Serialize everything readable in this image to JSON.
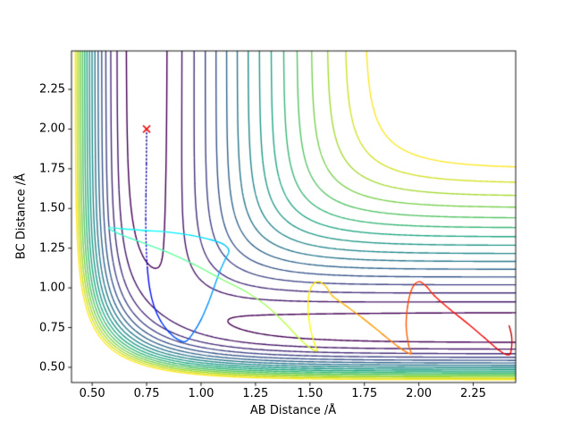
{
  "figure": {
    "background": "#ffffff",
    "axes_edge_color": "#000000"
  },
  "chart_data": {
    "type": "contour",
    "xlabel": "AB Distance /Å",
    "ylabel": "BC Distance /Å",
    "xlim": [
      0.405,
      2.445
    ],
    "ylim": [
      0.404,
      2.492
    ],
    "x_ticks": [
      0.5,
      0.75,
      1.0,
      1.25,
      1.5,
      1.75,
      2.0,
      2.25
    ],
    "x_tick_labels": [
      "0.50",
      "0.75",
      "1.00",
      "1.25",
      "1.50",
      "1.75",
      "2.00",
      "2.25"
    ],
    "y_ticks": [
      0.5,
      0.75,
      1.0,
      1.25,
      1.5,
      1.75,
      2.0,
      2.25
    ],
    "y_tick_labels": [
      "0.50",
      "0.75",
      "1.00",
      "1.25",
      "1.50",
      "1.75",
      "2.00",
      "2.25"
    ],
    "grid": false,
    "contour": {
      "model": "LEPS",
      "D": 4.7466,
      "beta": 1.942,
      "r0": 0.7417,
      "sato": 0.1827,
      "levels": [
        -4.59,
        -4.3665,
        -4.143,
        -3.9195,
        -3.696,
        -3.4725,
        -3.249,
        -3.0255,
        -2.802,
        -2.5785,
        -2.355,
        -2.1315,
        -1.908,
        -1.6845,
        -1.461,
        -1.2375
      ],
      "colormap": "viridis",
      "line_width": 1.4
    },
    "viridis_stops": [
      [
        0.0,
        "#440154"
      ],
      [
        0.1,
        "#482475"
      ],
      [
        0.2,
        "#414487"
      ],
      [
        0.3,
        "#355f8d"
      ],
      [
        0.4,
        "#2a788e"
      ],
      [
        0.5,
        "#21918c"
      ],
      [
        0.6,
        "#22a884"
      ],
      [
        0.7,
        "#44bf70"
      ],
      [
        0.8,
        "#7ad151"
      ],
      [
        0.9,
        "#bddf26"
      ],
      [
        1.0,
        "#fde725"
      ]
    ],
    "start_marker": {
      "x": 0.75,
      "y": 2.0,
      "symbol": "x",
      "color": "#f01515",
      "size": 8
    },
    "trajectory": {
      "colormap": "jet",
      "line_width": 1.35,
      "dotted_until_t": 0.105,
      "points": [
        [
          0.75,
          2.0,
          0.0
        ],
        [
          0.749,
          1.78,
          0.02
        ],
        [
          0.747,
          1.58,
          0.04
        ],
        [
          0.746,
          1.43,
          0.06
        ],
        [
          0.748,
          1.27,
          0.08
        ],
        [
          0.753,
          1.13,
          0.1
        ],
        [
          0.765,
          0.99,
          0.125
        ],
        [
          0.785,
          0.88,
          0.15
        ],
        [
          0.815,
          0.79,
          0.17
        ],
        [
          0.852,
          0.722,
          0.19
        ],
        [
          0.89,
          0.678,
          0.207
        ],
        [
          0.928,
          0.662,
          0.22
        ],
        [
          0.965,
          0.718,
          0.237
        ],
        [
          1.0,
          0.8,
          0.252
        ],
        [
          1.032,
          0.9,
          0.267
        ],
        [
          1.06,
          1.005,
          0.28
        ],
        [
          1.088,
          1.11,
          0.292
        ],
        [
          1.113,
          1.185,
          0.302
        ],
        [
          1.128,
          1.235,
          0.312
        ],
        [
          1.098,
          1.278,
          0.325
        ],
        [
          1.04,
          1.305,
          0.338
        ],
        [
          0.95,
          1.332,
          0.352
        ],
        [
          0.845,
          1.352,
          0.366
        ],
        [
          0.73,
          1.362,
          0.38
        ],
        [
          0.64,
          1.372,
          0.394
        ],
        [
          0.576,
          1.377,
          0.41
        ],
        [
          0.628,
          1.337,
          0.428
        ],
        [
          0.715,
          1.292,
          0.444
        ],
        [
          0.84,
          1.228,
          0.462
        ],
        [
          0.968,
          1.148,
          0.48
        ],
        [
          1.09,
          1.058,
          0.5
        ],
        [
          1.208,
          0.975,
          0.52
        ],
        [
          1.302,
          0.885,
          0.538
        ],
        [
          1.385,
          0.778,
          0.556
        ],
        [
          1.452,
          0.68,
          0.572
        ],
        [
          1.508,
          0.616,
          0.588
        ],
        [
          1.533,
          0.606,
          0.598
        ],
        [
          1.52,
          0.65,
          0.608
        ],
        [
          1.5,
          0.76,
          0.62
        ],
        [
          1.491,
          0.88,
          0.633
        ],
        [
          1.498,
          0.975,
          0.645
        ],
        [
          1.52,
          1.03,
          0.656
        ],
        [
          1.548,
          1.037,
          0.666
        ],
        [
          1.577,
          1.003,
          0.676
        ],
        [
          1.603,
          0.95,
          0.686
        ],
        [
          1.662,
          0.89,
          0.7
        ],
        [
          1.742,
          0.81,
          0.716
        ],
        [
          1.832,
          0.71,
          0.733
        ],
        [
          1.905,
          0.63,
          0.748
        ],
        [
          1.948,
          0.592,
          0.76
        ],
        [
          1.965,
          0.588,
          0.768
        ],
        [
          1.953,
          0.64,
          0.778
        ],
        [
          1.942,
          0.76,
          0.79
        ],
        [
          1.948,
          0.88,
          0.802
        ],
        [
          1.963,
          0.975,
          0.813
        ],
        [
          1.983,
          1.026,
          0.822
        ],
        [
          2.007,
          1.038,
          0.83
        ],
        [
          2.037,
          1.006,
          0.839
        ],
        [
          2.072,
          0.95,
          0.848
        ],
        [
          2.14,
          0.868,
          0.862
        ],
        [
          2.222,
          0.778,
          0.876
        ],
        [
          2.302,
          0.685,
          0.89
        ],
        [
          2.362,
          0.614,
          0.902
        ],
        [
          2.402,
          0.581,
          0.912
        ],
        [
          2.42,
          0.585,
          0.918
        ],
        [
          2.427,
          0.64,
          0.924
        ],
        [
          2.426,
          0.7,
          0.929
        ],
        [
          2.415,
          0.762,
          0.934
        ]
      ]
    }
  }
}
